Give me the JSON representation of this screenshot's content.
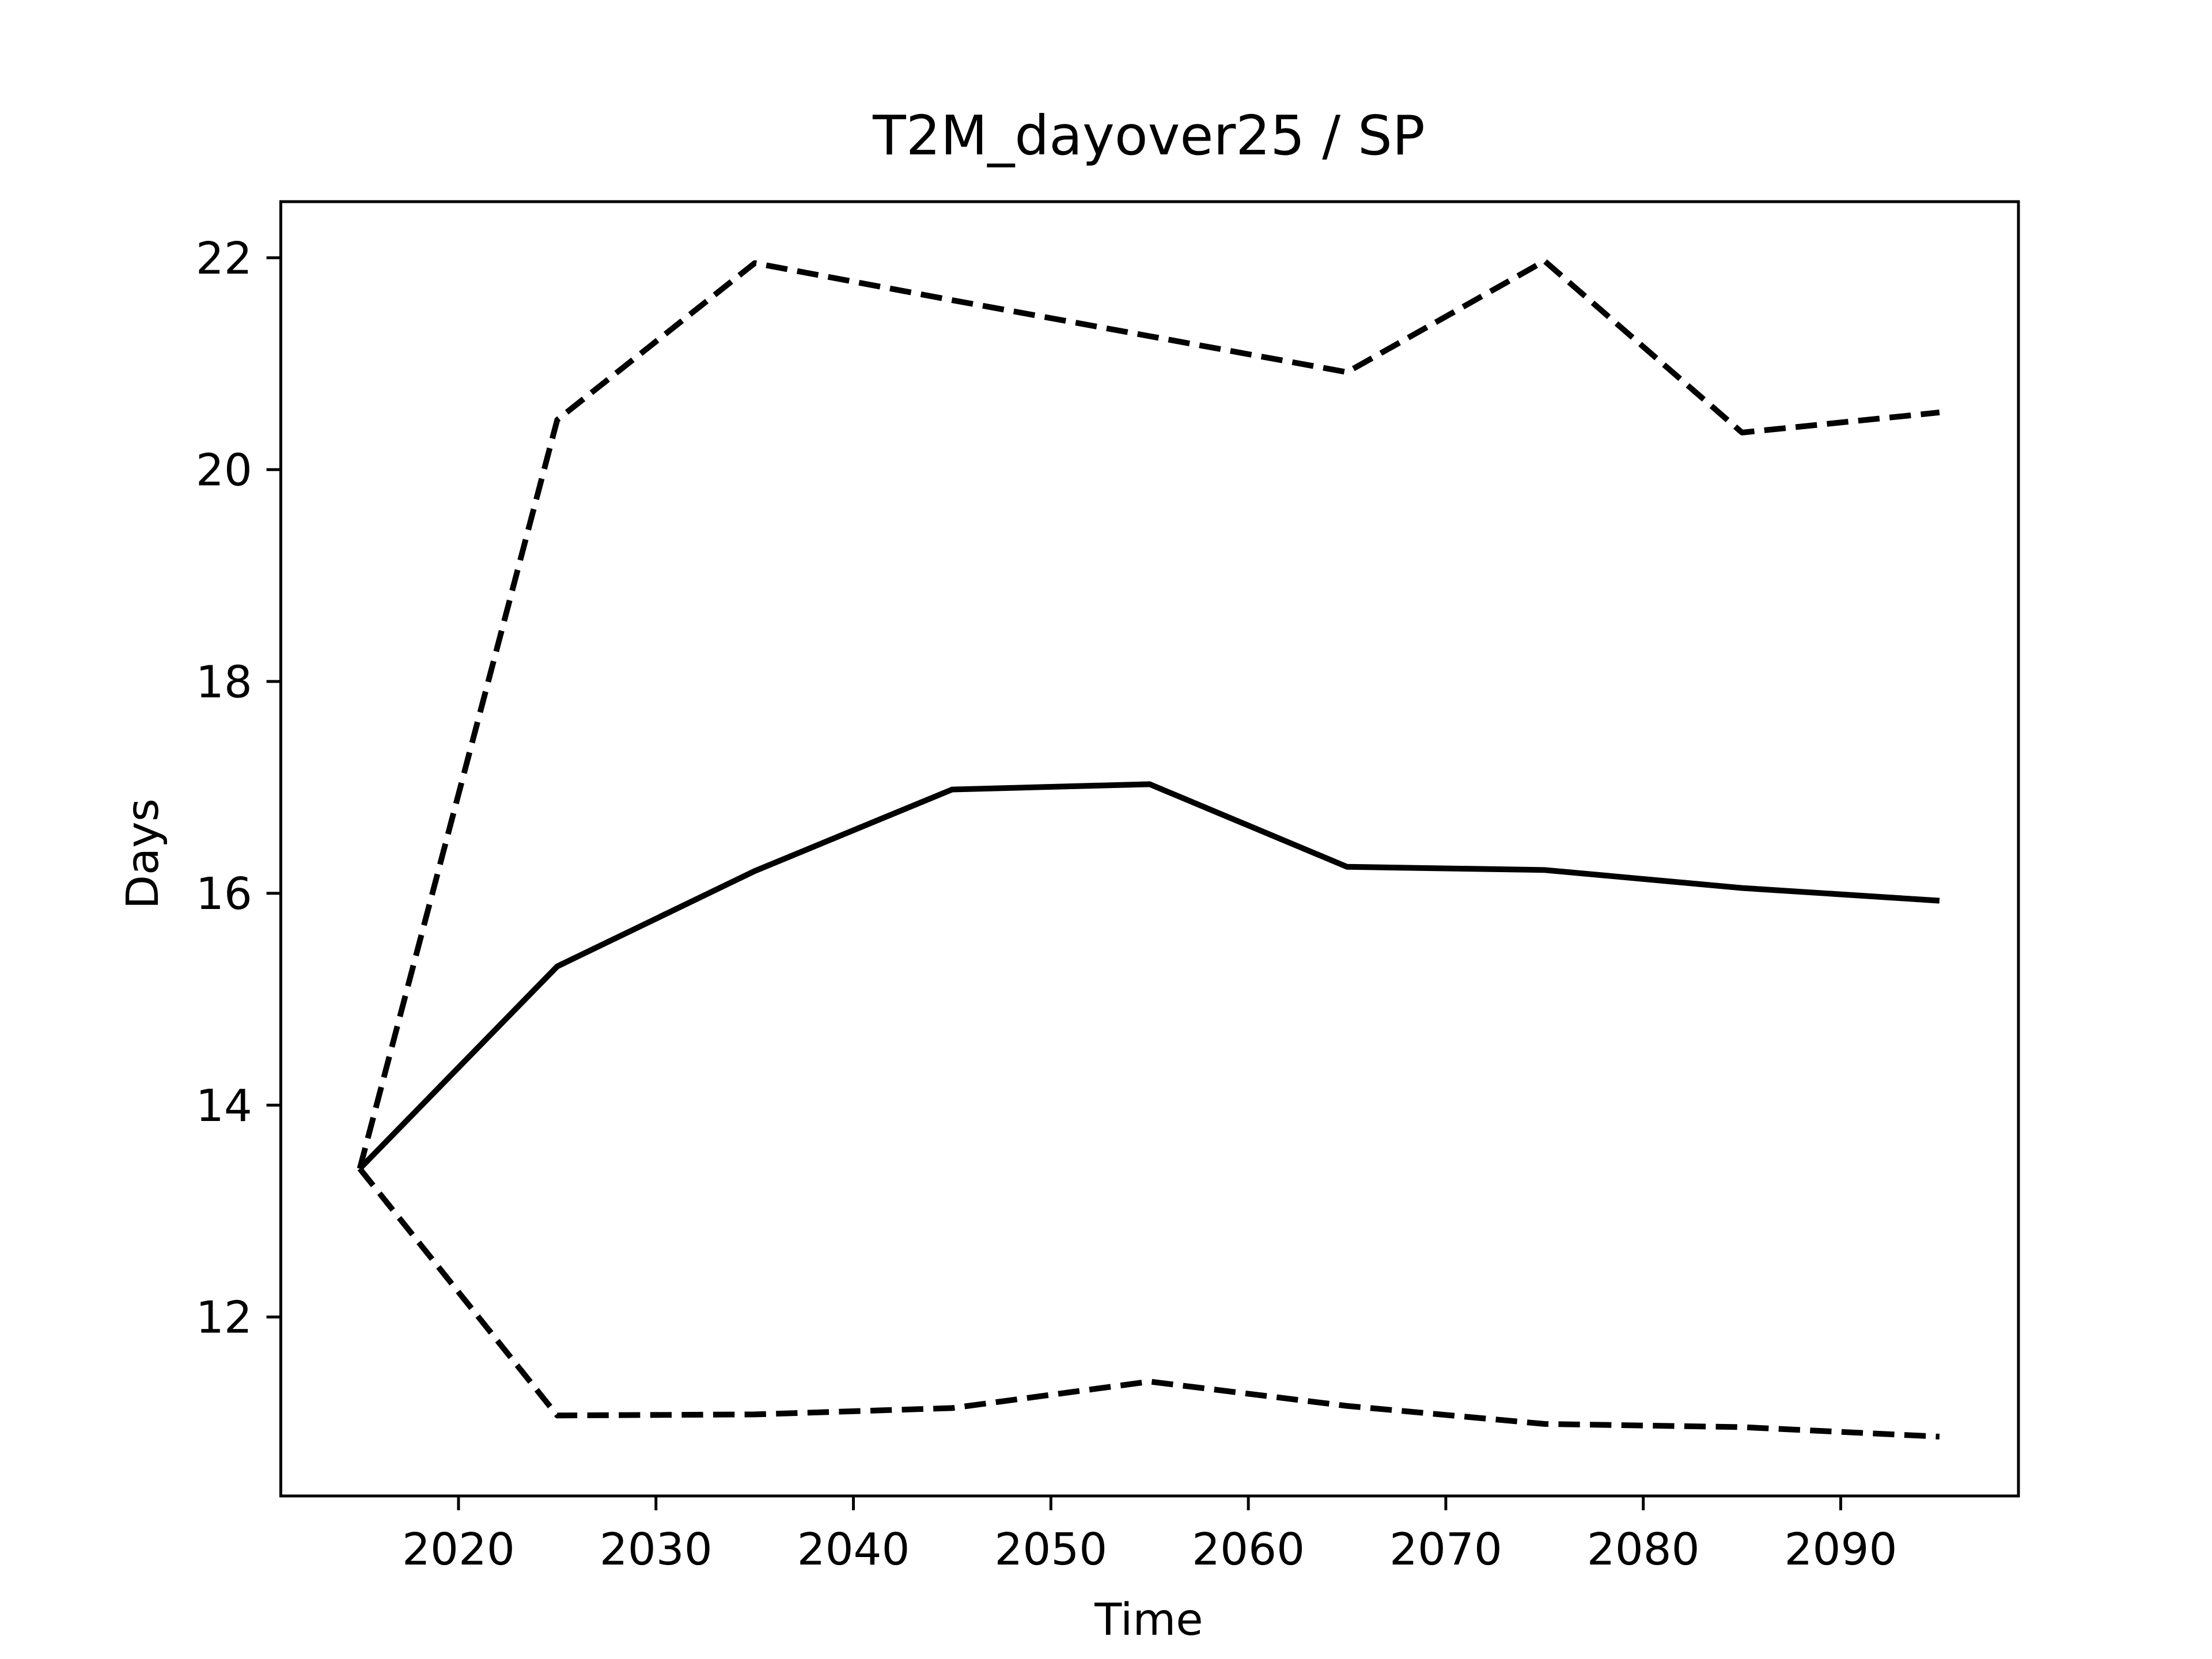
{
  "chart_data": {
    "type": "line",
    "title": "T2M_dayover25 / SP",
    "xlabel": "Time",
    "ylabel": "Days",
    "x": [
      2015,
      2025,
      2035,
      2045,
      2055,
      2065,
      2075,
      2085,
      2095
    ],
    "series": [
      {
        "color": "#000000",
        "linestyle": "solid",
        "values": [
          13.4,
          15.31,
          16.21,
          16.98,
          17.03,
          16.25,
          16.22,
          16.05,
          15.93
        ]
      },
      {
        "color": "#000000",
        "linestyle": "dashed",
        "values": [
          13.4,
          20.47,
          21.95,
          21.6,
          21.26,
          20.92,
          21.97,
          20.35,
          20.54
        ]
      },
      {
        "color": "#000000",
        "linestyle": "dashed",
        "values": [
          13.4,
          11.07,
          11.08,
          11.14,
          11.39,
          11.16,
          10.99,
          10.96,
          10.87
        ]
      }
    ],
    "xlim": [
      2011,
      2099
    ],
    "xticks": [
      2020,
      2030,
      2040,
      2050,
      2060,
      2070,
      2080,
      2090
    ],
    "ylim": [
      10.31,
      22.53
    ],
    "yticks": [
      12,
      14,
      16,
      18,
      20,
      22
    ],
    "grid": false
  }
}
